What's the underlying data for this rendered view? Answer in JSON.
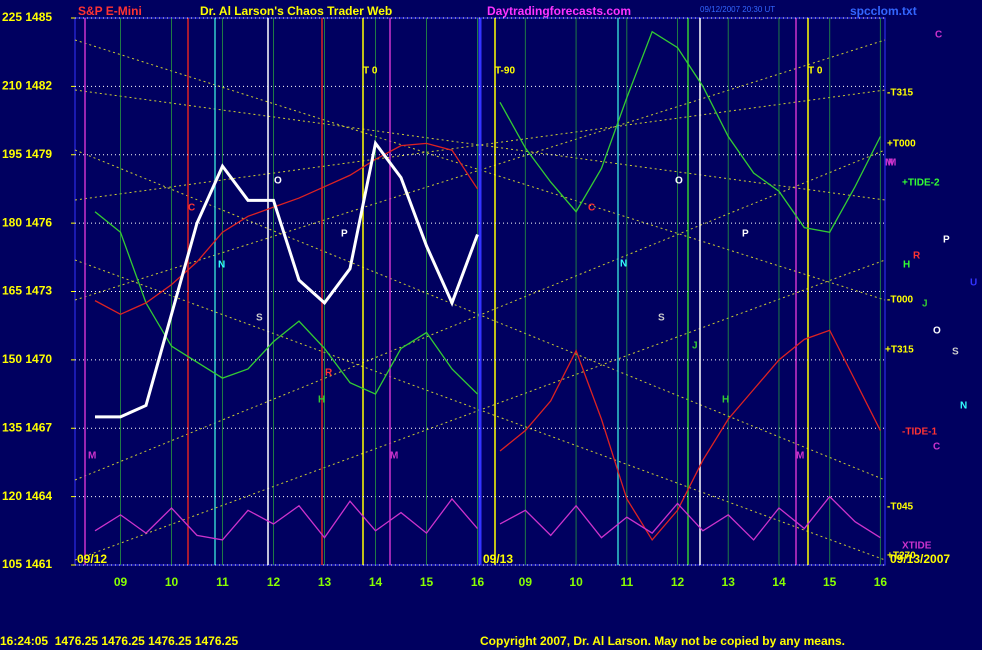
{
  "chart_data": {
    "type": "line",
    "title": "S&P E-Mini",
    "subtitle": "Dr. Al Larson's Chaos Trader Web",
    "site": "Daytradingforecasts.com",
    "file_name": "spcclom.txt",
    "timestamp": "09/12/2007 20:30 UT",
    "quote_line": "16:24:05  1476.25 1476.25 1476.25 1476.25",
    "copyright": "Copyright 2007, Dr. Al Larson. May not be copied by any means.",
    "date_labels": [
      "09/12",
      "09/13"
    ],
    "end_date": "09/13/2007",
    "categories": [
      null,
      "09",
      null,
      "10",
      null,
      "11",
      null,
      "12",
      null,
      "13",
      null,
      "14",
      null,
      "15",
      null,
      "16",
      null,
      "09",
      null,
      "10",
      null,
      "11",
      null,
      "12",
      null,
      "13",
      null,
      "14",
      null,
      "15",
      null,
      "16"
    ],
    "series": [
      {
        "name": "+TIDE-2",
        "color": "#33cc33",
        "values": [
          1476.5,
          1475.6,
          1472.5,
          1470.6,
          1469.9,
          1469.2,
          1469.6,
          1470.8,
          1471.7,
          1470.5,
          1469.0,
          1468.5,
          1470.5,
          1471.2,
          1469.6,
          1468.5,
          1481.3,
          1479.3,
          1477.8,
          1476.5,
          1478.4,
          1481.5,
          1484.4,
          1483.7,
          1482.0,
          1479.8,
          1478.2,
          1477.4,
          1475.8,
          1475.6,
          1477.6,
          1479.8
        ]
      },
      {
        "name": "-TIDE-1",
        "color": "#dd2222",
        "values": [
          1472.6,
          1472.0,
          1472.5,
          1473.3,
          1474.3,
          1475.6,
          1476.3,
          1476.7,
          1477.1,
          1477.6,
          1478.1,
          1478.8,
          1479.4,
          1479.5,
          1479.2,
          1477.5,
          1466.0,
          1466.9,
          1468.2,
          1470.4,
          1467.4,
          1463.9,
          1462.1,
          1463.4,
          1465.6,
          1467.4,
          1468.7,
          1470.0,
          1470.9,
          1471.3,
          1469.1,
          1466.9
        ]
      },
      {
        "name": "XTIDE",
        "color": "#cc33cc",
        "values": [
          1462.5,
          1463.2,
          1462.4,
          1463.5,
          1462.3,
          1462.1,
          1463.4,
          1462.8,
          1463.6,
          1462.2,
          1463.8,
          1462.5,
          1463.3,
          1462.4,
          1463.9,
          1462.6,
          1462.8,
          1463.4,
          1462.3,
          1463.6,
          1462.2,
          1463.1,
          1462.4,
          1463.7,
          1462.5,
          1463.2,
          1462.1,
          1463.5,
          1462.6,
          1464.0,
          1462.9,
          1462.2
        ]
      },
      {
        "name": "S&P E-Mini",
        "color": "#ffffff",
        "values": [
          1467.5,
          1467.5,
          1468.0,
          1472.0,
          1476.0,
          1478.5,
          1477.0,
          1477.0,
          1473.5,
          1472.5,
          1474.0,
          1479.5,
          1478.0,
          1475.0,
          1472.5,
          1475.5,
          null,
          null,
          null,
          null,
          null,
          null,
          null,
          null,
          null,
          null,
          null,
          null,
          null,
          null,
          null,
          null
        ]
      }
    ],
    "ylim": [
      1461,
      1485
    ],
    "yticks": [
      {
        "value": 1485,
        "label": "225 1485"
      },
      {
        "value": 1482,
        "label": "210 1482"
      },
      {
        "value": 1479,
        "label": "195 1479"
      },
      {
        "value": 1476,
        "label": "180 1476"
      },
      {
        "value": 1473,
        "label": "165 1473"
      },
      {
        "value": 1470,
        "label": "150 1470"
      },
      {
        "value": 1467,
        "label": "135 1467"
      },
      {
        "value": 1464,
        "label": "120 1464"
      },
      {
        "value": 1461,
        "label": "105 1461"
      }
    ],
    "grid": true,
    "annotations": [
      "T 0",
      "T-90",
      "T 0",
      "C",
      "N",
      "S",
      "R",
      "H",
      "P",
      "O",
      "M",
      "M",
      "M",
      "C",
      "N",
      "S",
      "J",
      "H",
      "P",
      "O",
      "M"
    ],
    "right_labels": [
      "C",
      "-T315",
      "+T000",
      "M",
      "+TIDE-2",
      "P",
      "H",
      "R",
      "U",
      "-T000",
      "J",
      "O",
      "+T315",
      "S",
      "N",
      "-TIDE-1",
      "C",
      "-T045",
      "XTIDE",
      "+T270"
    ]
  }
}
